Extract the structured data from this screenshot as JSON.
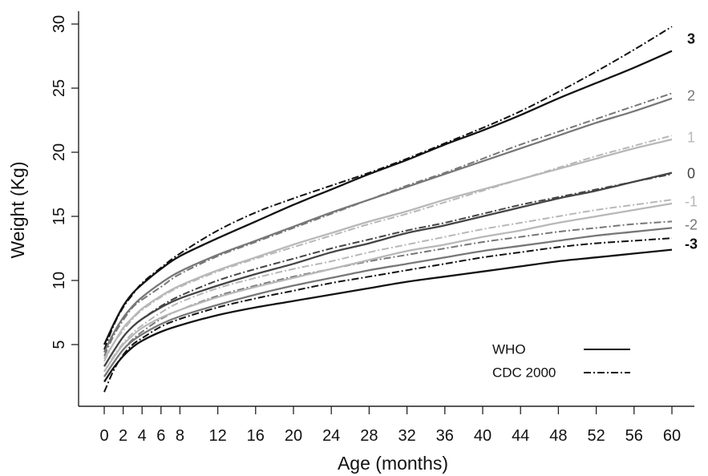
{
  "chart_data": {
    "type": "line",
    "xlabel": "Age (months)",
    "ylabel": "Weight (Kg)",
    "xlim": [
      0,
      60
    ],
    "ylim": [
      0,
      30
    ],
    "x_ticks": [
      0,
      2,
      4,
      6,
      8,
      12,
      16,
      20,
      24,
      28,
      32,
      36,
      40,
      44,
      48,
      52,
      56,
      60
    ],
    "y_ticks": [
      5,
      10,
      15,
      20,
      25,
      30
    ],
    "grid": false,
    "legend": {
      "placement": "bottom-right",
      "entries": [
        {
          "label": "WHO",
          "style": "solid"
        },
        {
          "label": "CDC 2000",
          "style": "dash-dot"
        }
      ]
    },
    "z_levels": [
      {
        "label": "3",
        "color": "#111111"
      },
      {
        "label": "2",
        "color": "#777777"
      },
      {
        "label": "1",
        "color": "#b8b8b8"
      },
      {
        "label": "0",
        "color": "#444444"
      },
      {
        "label": "-1",
        "color": "#b8b8b8"
      },
      {
        "label": "-2",
        "color": "#777777"
      },
      {
        "label": "-3",
        "color": "#111111"
      }
    ],
    "x": [
      0,
      1,
      2,
      3,
      4,
      6,
      8,
      12,
      16,
      20,
      24,
      28,
      32,
      36,
      40,
      44,
      48,
      52,
      56,
      60
    ],
    "series": [
      {
        "name": "WHO",
        "z": "3",
        "style": "solid",
        "color": "#111111",
        "values": [
          5.0,
          6.6,
          8.0,
          9.0,
          9.7,
          10.9,
          11.9,
          13.3,
          14.6,
          15.9,
          17.1,
          18.3,
          19.4,
          20.6,
          21.7,
          22.9,
          24.2,
          25.4,
          26.6,
          27.9
        ]
      },
      {
        "name": "CDC 2000",
        "z": "3",
        "style": "dash-dot",
        "color": "#111111",
        "values": [
          4.6,
          6.5,
          7.9,
          8.9,
          9.8,
          11.0,
          12.1,
          13.9,
          15.3,
          16.4,
          17.4,
          18.4,
          19.5,
          20.7,
          21.9,
          23.2,
          24.7,
          26.3,
          28.0,
          29.8
        ]
      },
      {
        "name": "WHO",
        "z": "2",
        "style": "solid",
        "color": "#777777",
        "values": [
          4.4,
          5.9,
          7.1,
          8.0,
          8.7,
          9.8,
          10.7,
          12.0,
          13.1,
          14.2,
          15.3,
          16.3,
          17.3,
          18.3,
          19.3,
          20.3,
          21.3,
          22.3,
          23.2,
          24.2
        ]
      },
      {
        "name": "CDC 2000",
        "z": "2",
        "style": "dash-dot",
        "color": "#777777",
        "values": [
          4.1,
          5.7,
          6.9,
          7.9,
          8.5,
          9.5,
          10.5,
          11.9,
          13.0,
          14.1,
          15.2,
          16.3,
          17.4,
          18.4,
          19.5,
          20.6,
          21.6,
          22.6,
          23.6,
          24.6
        ]
      },
      {
        "name": "WHO",
        "z": "1",
        "style": "solid",
        "color": "#b8b8b8",
        "values": [
          3.9,
          5.1,
          6.3,
          7.1,
          7.8,
          8.8,
          9.6,
          10.8,
          11.8,
          12.8,
          13.7,
          14.6,
          15.4,
          16.3,
          17.1,
          17.9,
          18.7,
          19.5,
          20.3,
          21.0
        ]
      },
      {
        "name": "CDC 2000",
        "z": "1",
        "style": "dash-dot",
        "color": "#b8b8b8",
        "values": [
          3.7,
          5.1,
          6.1,
          7.0,
          7.7,
          8.7,
          9.5,
          10.7,
          11.7,
          12.6,
          13.5,
          14.4,
          15.2,
          16.1,
          17.0,
          17.9,
          18.8,
          19.7,
          20.5,
          21.3
        ]
      },
      {
        "name": "WHO",
        "z": "0",
        "style": "solid",
        "color": "#444444",
        "values": [
          3.3,
          4.5,
          5.6,
          6.4,
          7.0,
          7.9,
          8.6,
          9.6,
          10.5,
          11.3,
          12.2,
          12.9,
          13.7,
          14.3,
          15.0,
          15.7,
          16.4,
          17.0,
          17.7,
          18.4
        ]
      },
      {
        "name": "CDC 2000",
        "z": "0",
        "style": "dash-dot",
        "color": "#444444",
        "values": [
          3.3,
          4.5,
          5.6,
          6.4,
          7.0,
          8.0,
          8.8,
          10.0,
          10.9,
          11.7,
          12.5,
          13.2,
          13.9,
          14.5,
          15.2,
          15.9,
          16.5,
          17.1,
          17.7,
          18.3
        ]
      },
      {
        "name": "WHO",
        "z": "-1",
        "style": "solid",
        "color": "#b8b8b8",
        "values": [
          2.9,
          4.0,
          5.0,
          5.7,
          6.3,
          7.1,
          7.7,
          8.7,
          9.5,
          10.2,
          10.9,
          11.6,
          12.3,
          12.8,
          13.4,
          13.9,
          14.5,
          15.0,
          15.5,
          16.0
        ]
      },
      {
        "name": "CDC 2000",
        "z": "-1",
        "style": "dash-dot",
        "color": "#b8b8b8",
        "values": [
          2.9,
          4.1,
          5.1,
          5.9,
          6.5,
          7.5,
          8.3,
          9.4,
          10.2,
          10.9,
          11.5,
          12.2,
          12.8,
          13.4,
          14.0,
          14.5,
          15.0,
          15.5,
          15.9,
          16.3
        ]
      },
      {
        "name": "WHO",
        "z": "-2",
        "style": "solid",
        "color": "#777777",
        "values": [
          2.5,
          3.6,
          4.6,
          5.3,
          5.8,
          6.6,
          7.2,
          8.1,
          8.9,
          9.6,
          10.2,
          10.8,
          11.3,
          11.8,
          12.3,
          12.7,
          13.1,
          13.5,
          13.8,
          14.1
        ]
      },
      {
        "name": "CDC 2000",
        "z": "-2",
        "style": "dash-dot",
        "color": "#777777",
        "values": [
          2.5,
          3.6,
          4.6,
          5.4,
          6.0,
          7.0,
          7.7,
          8.8,
          9.6,
          10.3,
          10.9,
          11.5,
          12.0,
          12.5,
          13.0,
          13.4,
          13.8,
          14.1,
          14.4,
          14.6
        ]
      },
      {
        "name": "WHO",
        "z": "-3",
        "style": "solid",
        "color": "#111111",
        "values": [
          2.1,
          3.2,
          4.1,
          4.8,
          5.3,
          6.0,
          6.5,
          7.3,
          7.9,
          8.4,
          8.9,
          9.4,
          9.9,
          10.3,
          10.7,
          11.1,
          11.5,
          11.8,
          12.1,
          12.4
        ]
      },
      {
        "name": "CDC 2000",
        "z": "-3",
        "style": "dash-dot",
        "color": "#111111",
        "values": [
          1.3,
          3.0,
          4.2,
          5.0,
          5.5,
          6.4,
          7.0,
          7.9,
          8.6,
          9.2,
          9.8,
          10.3,
          10.8,
          11.3,
          11.8,
          12.2,
          12.6,
          12.9,
          13.1,
          13.3
        ]
      }
    ]
  }
}
